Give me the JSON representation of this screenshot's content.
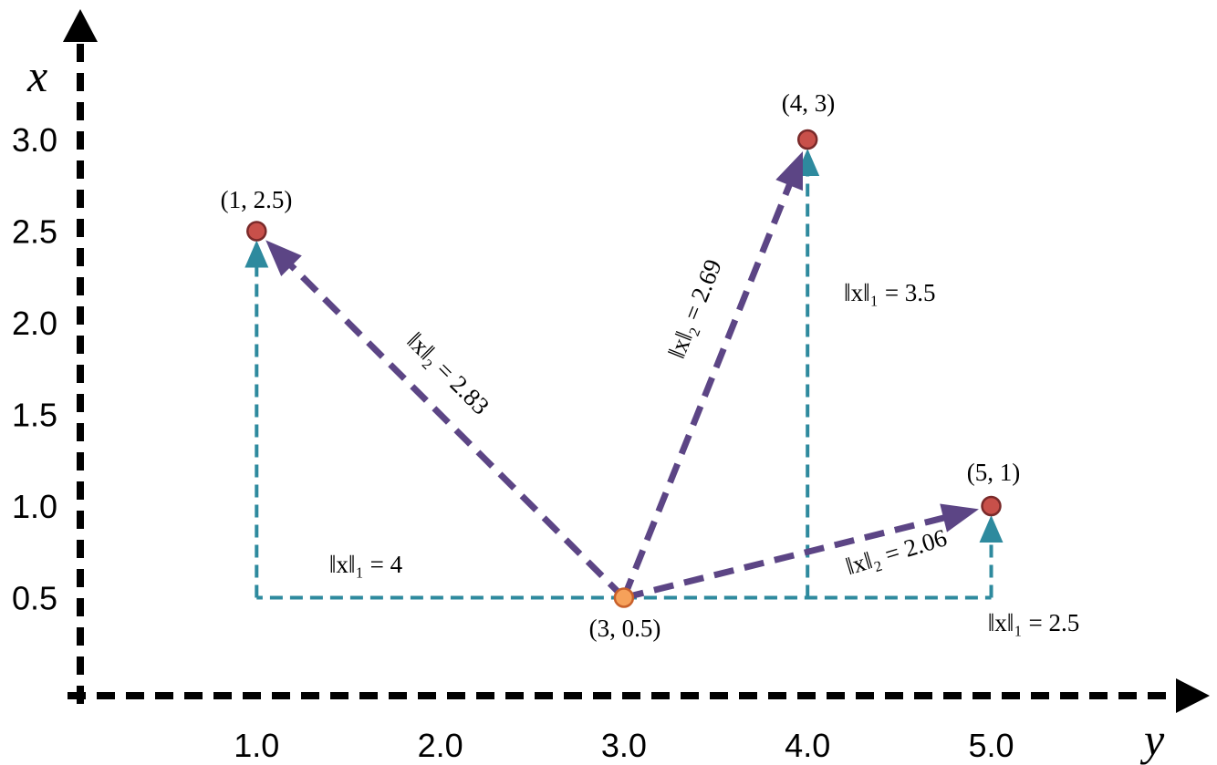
{
  "chart_data": {
    "type": "scatter",
    "title": "",
    "xlabel": "y",
    "ylabel": "x",
    "x_axis_variable": "y",
    "y_axis_variable": "x",
    "xlim": [
      0,
      6
    ],
    "ylim": [
      0,
      3.5
    ],
    "x_ticks": [
      "1.0",
      "2.0",
      "3.0",
      "4.0",
      "5.0"
    ],
    "y_ticks": [
      "0.5",
      "1.0",
      "1.5",
      "2.0",
      "2.5",
      "3.0"
    ],
    "origin_point": {
      "x": 3,
      "y": 0.5,
      "label": "(3, 0.5)",
      "color": "#f6a15a"
    },
    "points": [
      {
        "x": 1,
        "y": 2.5,
        "label": "(1, 2.5)"
      },
      {
        "x": 4,
        "y": 3,
        "label": "(4, 3)"
      },
      {
        "x": 5,
        "y": 1,
        "label": "(5, 1)"
      }
    ],
    "l2_vectors": [
      {
        "from": [
          3,
          0.5
        ],
        "to": [
          1,
          2.5
        ],
        "label": "‖x‖₂ = 2.83"
      },
      {
        "from": [
          3,
          0.5
        ],
        "to": [
          4,
          3
        ],
        "label": "‖x‖₂ = 2.69"
      },
      {
        "from": [
          3,
          0.5
        ],
        "to": [
          5,
          1
        ],
        "label": "‖x‖₂ = 2.06"
      }
    ],
    "l1_paths": [
      {
        "corner": [
          1,
          0.5
        ],
        "to": [
          1,
          2.5
        ],
        "label": "‖x‖₁ = 4"
      },
      {
        "corner": [
          4,
          0.5
        ],
        "to": [
          4,
          3
        ],
        "label": "‖x‖₁ = 3.5"
      },
      {
        "corner": [
          5,
          0.5
        ],
        "to": [
          5,
          1
        ],
        "label": "‖x‖₁ = 2.5"
      }
    ],
    "colors": {
      "axis": "#000000",
      "l2": "#5c4585",
      "l1": "#2e8a9e",
      "point_fill": "#c8504a",
      "point_stroke": "#7a2a2a",
      "origin_fill": "#f6a15a",
      "origin_stroke": "#c8602a"
    }
  }
}
